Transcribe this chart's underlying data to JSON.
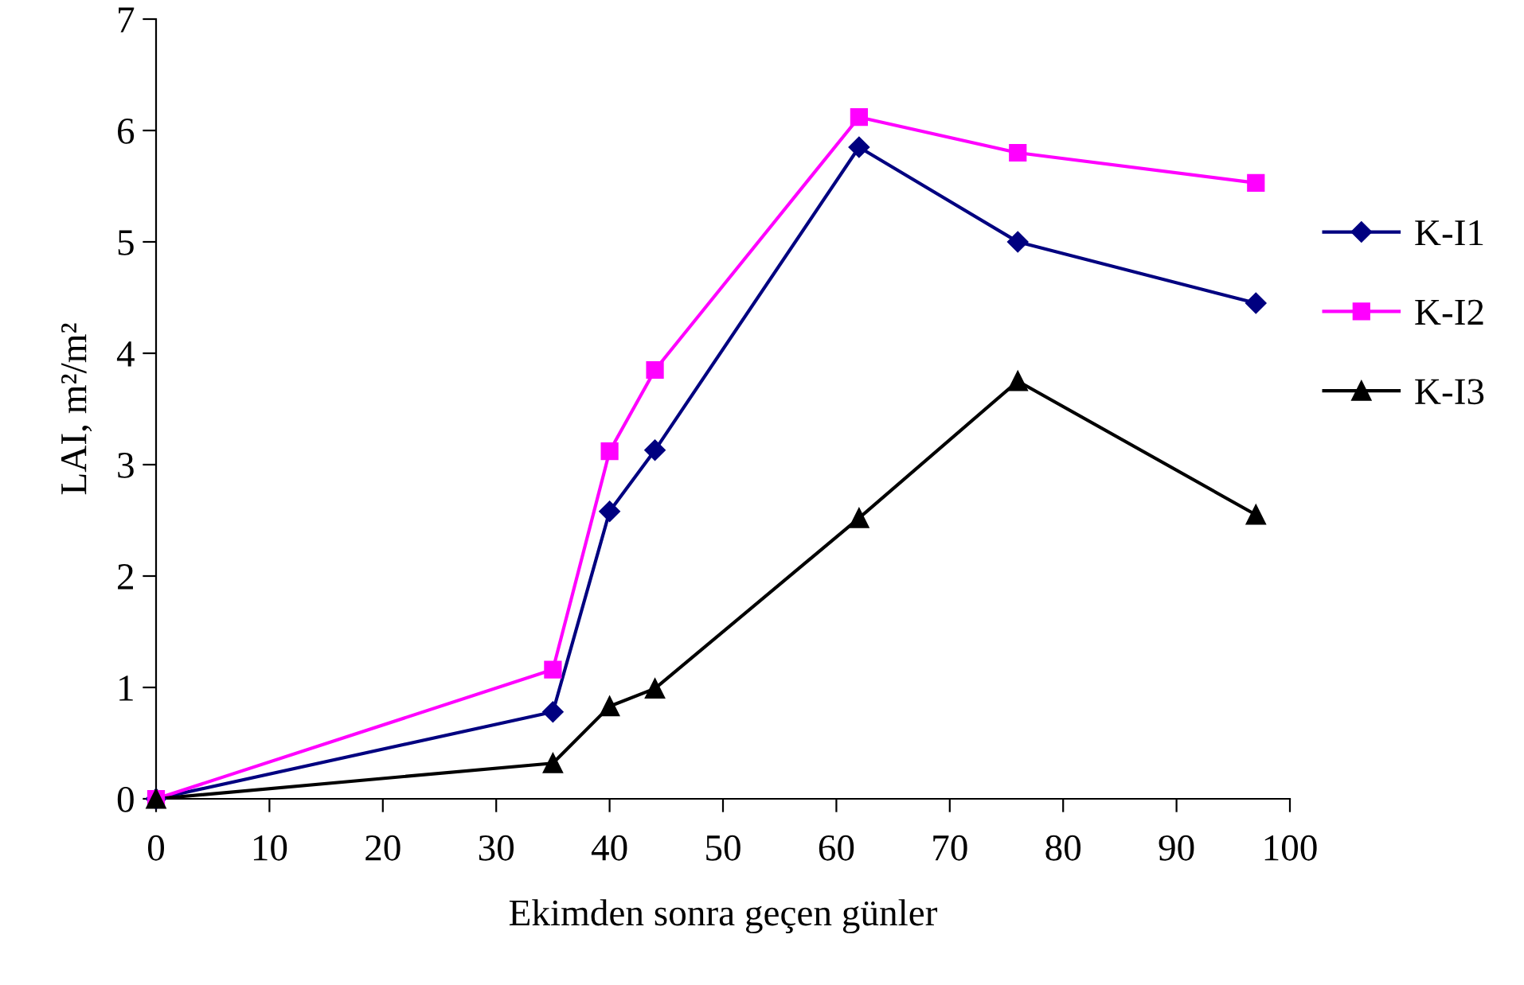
{
  "chart_data": {
    "type": "line",
    "xlabel": "Ekimden sonra geçen günler",
    "ylabel": "LAI, m²/m²",
    "x": [
      0,
      35,
      40,
      44,
      62,
      76,
      97
    ],
    "series": [
      {
        "name": "K-I1",
        "color": "#000080",
        "marker": "diamond",
        "values": [
          0,
          0.78,
          2.58,
          3.13,
          5.85,
          5.0,
          4.45
        ]
      },
      {
        "name": "K-I2",
        "color": "#ff00ff",
        "marker": "square",
        "values": [
          0,
          1.16,
          3.12,
          3.85,
          6.12,
          5.8,
          5.53
        ]
      },
      {
        "name": "K-I3",
        "color": "#000000",
        "marker": "triangle",
        "values": [
          0,
          0.32,
          0.83,
          0.99,
          2.52,
          3.75,
          2.55
        ]
      }
    ],
    "xlim": [
      0,
      100
    ],
    "xticks": [
      0,
      10,
      20,
      30,
      40,
      50,
      60,
      70,
      80,
      90,
      100
    ],
    "ylim": [
      0,
      7
    ],
    "yticks": [
      0,
      1,
      2,
      3,
      4,
      5,
      6,
      7
    ],
    "grid": false,
    "legend": "right",
    "line_style": "solid"
  }
}
